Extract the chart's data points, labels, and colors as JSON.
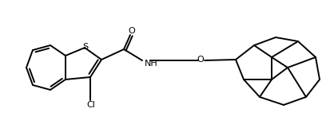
{
  "bg_color": "#ffffff",
  "line_color": "#000000",
  "line_width": 1.4,
  "fig_width": 4.18,
  "fig_height": 1.56,
  "dpi": 100,
  "atoms": {
    "S": "S",
    "O_carbonyl": "O",
    "NH": "NH",
    "O_ether": "O",
    "Cl": "Cl"
  }
}
